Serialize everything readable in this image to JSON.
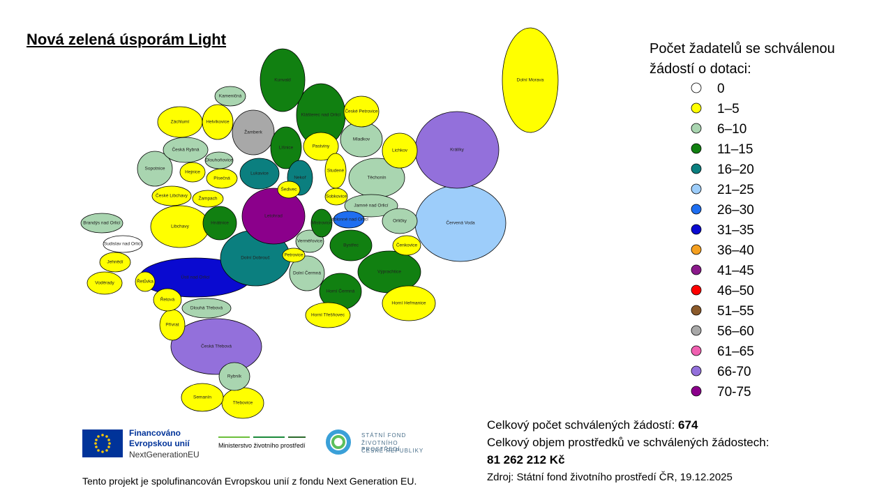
{
  "title": "Nová zelená úsporám Light",
  "legend": {
    "title": "Počet žadatelů se schválenou žádostí o dotaci:",
    "items": [
      {
        "label": "0",
        "color": "#ffffff"
      },
      {
        "label": "1–5",
        "color": "#ffff00"
      },
      {
        "label": "6–10",
        "color": "#a9d5b0"
      },
      {
        "label": "11–15",
        "color": "#118011"
      },
      {
        "label": "16–20",
        "color": "#0b7f7f"
      },
      {
        "label": "21–25",
        "color": "#9dcdfa"
      },
      {
        "label": "26–30",
        "color": "#1f6ef0"
      },
      {
        "label": "31–35",
        "color": "#0a0ad0"
      },
      {
        "label": "36–40",
        "color": "#f5a020"
      },
      {
        "label": "41–45",
        "color": "#8b1a8b"
      },
      {
        "label": "46–50",
        "color": "#ff0000"
      },
      {
        "label": "51–55",
        "color": "#8b5a2b"
      },
      {
        "label": "56–60",
        "color": "#a8a8a8"
      },
      {
        "label": "61–65",
        "color": "#f060b0"
      },
      {
        "label": "66-70",
        "color": "#9370db"
      },
      {
        "label": "70-75",
        "color": "#8b008b"
      }
    ]
  },
  "regions": [
    {
      "name": "Kameničná",
      "color": "#a9d5b0"
    },
    {
      "name": "Kunvald",
      "color": "#118011"
    },
    {
      "name": "Klášterec nad Orlicí",
      "color": "#118011"
    },
    {
      "name": "České Petrovice",
      "color": "#ffff00"
    },
    {
      "name": "Záchlumí",
      "color": "#ffff00"
    },
    {
      "name": "Helvíkovice",
      "color": "#ffff00"
    },
    {
      "name": "Žamberk",
      "color": "#a8a8a8"
    },
    {
      "name": "Mladkov",
      "color": "#a9d5b0"
    },
    {
      "name": "Česká Rybná",
      "color": "#a9d5b0"
    },
    {
      "name": "Líšnice",
      "color": "#118011"
    },
    {
      "name": "Pastviny",
      "color": "#ffff00"
    },
    {
      "name": "Lichkov",
      "color": "#ffff00"
    },
    {
      "name": "Králíky",
      "color": "#9370db"
    },
    {
      "name": "Dolní Morava",
      "color": "#ffff00"
    },
    {
      "name": "Sopotnice",
      "color": "#a9d5b0"
    },
    {
      "name": "Hejnice",
      "color": "#ffff00"
    },
    {
      "name": "Dlouhoňovice",
      "color": "#a9d5b0"
    },
    {
      "name": "Lukavice",
      "color": "#0b7f7f"
    },
    {
      "name": "Nekoř",
      "color": "#0b7f7f"
    },
    {
      "name": "Studené",
      "color": "#ffff00"
    },
    {
      "name": "Těchonín",
      "color": "#a9d5b0"
    },
    {
      "name": "Písečná",
      "color": "#ffff00"
    },
    {
      "name": "České Libchavy",
      "color": "#ffff00"
    },
    {
      "name": "Žampach",
      "color": "#ffff00"
    },
    {
      "name": "Šedivec",
      "color": "#ffff00"
    },
    {
      "name": "Sobkovice",
      "color": "#ffff00"
    },
    {
      "name": "Letohrad",
      "color": "#8b008b"
    },
    {
      "name": "Jamné nad Orlicí",
      "color": "#a9d5b0"
    },
    {
      "name": "Červená Voda",
      "color": "#9dcdfa"
    },
    {
      "name": "Brandýs nad Orlicí",
      "color": "#a9d5b0"
    },
    {
      "name": "Libchavy",
      "color": "#ffff00"
    },
    {
      "name": "Hnátnice",
      "color": "#118011"
    },
    {
      "name": "Mistrovice",
      "color": "#118011"
    },
    {
      "name": "Jablonné nad Orlicí",
      "color": "#1f6ef0"
    },
    {
      "name": "Orličky",
      "color": "#a9d5b0"
    },
    {
      "name": "Sudislav nad Orlicí",
      "color": "#ffffff"
    },
    {
      "name": "Dolní Dobrouč",
      "color": "#0b7f7f"
    },
    {
      "name": "Verměřovice",
      "color": "#a9d5b0"
    },
    {
      "name": "Bystřec",
      "color": "#118011"
    },
    {
      "name": "Čenkovice",
      "color": "#ffff00"
    },
    {
      "name": "Jehnědí",
      "color": "#ffff00"
    },
    {
      "name": "Petrovice",
      "color": "#ffff00"
    },
    {
      "name": "Ústí nad Orlicí",
      "color": "#0a0ad0"
    },
    {
      "name": "Dolní Čermná",
      "color": "#a9d5b0"
    },
    {
      "name": "Voděrady",
      "color": "#ffff00"
    },
    {
      "name": "Řetůvka",
      "color": "#ffff00"
    },
    {
      "name": "Výprachtice",
      "color": "#118011"
    },
    {
      "name": "Řetová",
      "color": "#ffff00"
    },
    {
      "name": "Horní Čermná",
      "color": "#118011"
    },
    {
      "name": "Horní Heřmanice",
      "color": "#ffff00"
    },
    {
      "name": "Dlouhá Třebová",
      "color": "#a9d5b0"
    },
    {
      "name": "Horní Třešňovec",
      "color": "#ffff00"
    },
    {
      "name": "Přívrat",
      "color": "#ffff00"
    },
    {
      "name": "Česká Třebová",
      "color": "#9370db"
    },
    {
      "name": "Rybník",
      "color": "#a9d5b0"
    },
    {
      "name": "Semanín",
      "color": "#ffff00"
    },
    {
      "name": "Třebovice",
      "color": "#ffff00"
    }
  ],
  "stats": {
    "count_label": "Celkový počet schválených žádostí:",
    "count": "674",
    "volume_label": "Celkový objem prostředků ve schválených žádostech:",
    "volume": "81 262 212 Kč",
    "source": "Zdroj: Státní fond životního prostředí ČR, 19.12.2025"
  },
  "logos": {
    "eu_line1": "Financováno",
    "eu_line2": "Evropskou unií",
    "eu_line3": "NextGenerationEU",
    "ministry": "Ministerstvo životního prostředí",
    "fund_line1": "STÁTNÍ FOND",
    "fund_line2": "ŽIVOTNÍHO PROSTŘEDÍ",
    "fund_line3": "ČESKÉ REPUBLIKY"
  },
  "footer": "Tento projekt je spolufinancován Evropskou unií z fondu Next Generation EU."
}
